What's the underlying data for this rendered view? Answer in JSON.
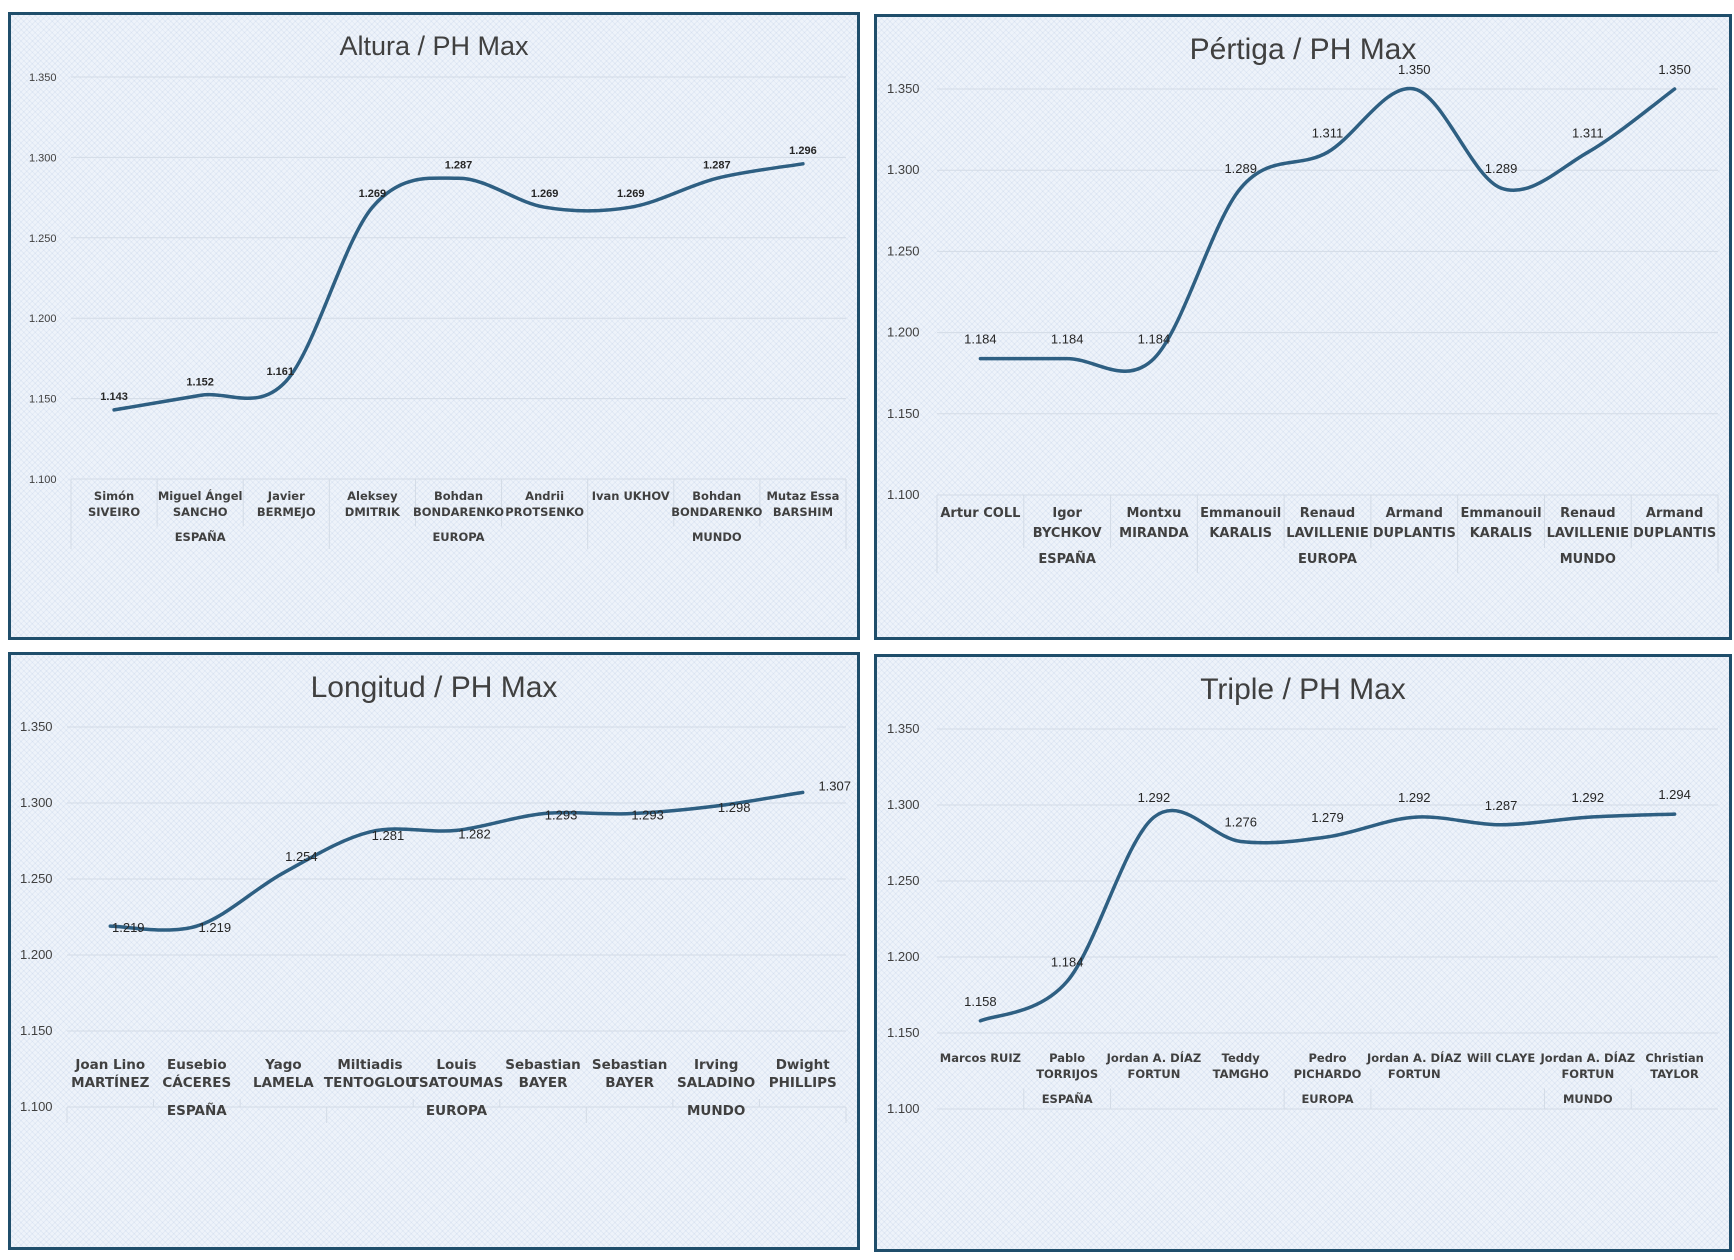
{
  "chart_data": [
    {
      "type": "line",
      "title": "Altura / PH Max",
      "ylim": [
        1.1,
        1.35
      ],
      "yticks": [
        "1.100",
        "1.150",
        "1.200",
        "1.250",
        "1.300",
        "1.350"
      ],
      "categories": [
        [
          "Simón",
          "SIVEIRO"
        ],
        [
          "Miguel Ángel",
          "SANCHO"
        ],
        [
          "Javier",
          "BERMEJO"
        ],
        [
          "Aleksey",
          "DMITRIK"
        ],
        [
          "Bohdan",
          "BONDARENKO"
        ],
        [
          "Andrii",
          "PROTSENKO"
        ],
        [
          "Ivan UKHOV"
        ],
        [
          "Bohdan",
          "BONDARENKO"
        ],
        [
          "Mutaz Essa",
          "BARSHIM"
        ]
      ],
      "groups": [
        "ESPAÑA",
        "EUROPA",
        "MUNDO"
      ],
      "values": [
        1.143,
        1.152,
        1.161,
        1.269,
        1.287,
        1.269,
        1.269,
        1.287,
        1.296
      ],
      "labels": [
        "1.143",
        "1.152",
        "1.161",
        "1.269",
        "1.287",
        "1.269",
        "1.269",
        "1.287",
        "1.296"
      ]
    },
    {
      "type": "line",
      "title": "Pértiga / PH Max",
      "ylim": [
        1.1,
        1.35
      ],
      "yticks": [
        "1.100",
        "1.150",
        "1.200",
        "1.250",
        "1.300",
        "1.350"
      ],
      "categories": [
        [
          "Artur COLL"
        ],
        [
          "Igor",
          "BYCHKOV"
        ],
        [
          "Montxu",
          "MIRANDA"
        ],
        [
          "Emmanouil",
          "KARALIS"
        ],
        [
          "Renaud",
          "LAVILLENIE"
        ],
        [
          "Armand",
          "DUPLANTIS"
        ],
        [
          "Emmanouil",
          "KARALIS"
        ],
        [
          "Renaud",
          "LAVILLENIE"
        ],
        [
          "Armand",
          "DUPLANTIS"
        ]
      ],
      "groups": [
        "ESPAÑA",
        "EUROPA",
        "MUNDO"
      ],
      "values": [
        1.184,
        1.184,
        1.184,
        1.289,
        1.311,
        1.35,
        1.289,
        1.311,
        1.35
      ],
      "labels": [
        "1.184",
        "1.184",
        "1.184",
        "1.289",
        "1.311",
        "1.350",
        "1.289",
        "1.311",
        "1.350"
      ]
    },
    {
      "type": "line",
      "title": "Longitud / PH Max",
      "ylim": [
        1.1,
        1.35
      ],
      "yticks": [
        "1.100",
        "1.150",
        "1.200",
        "1.250",
        "1.300",
        "1.350"
      ],
      "categories": [
        [
          "Joan Lino",
          "MARTÍNEZ"
        ],
        [
          "Eusebio",
          "CÁCERES"
        ],
        [
          "Yago",
          "LAMELA"
        ],
        [
          "Miltiadis",
          "TENTOGLOU"
        ],
        [
          "Louis",
          "TSATOUMAS"
        ],
        [
          "Sebastian",
          "BAYER"
        ],
        [
          "Sebastian",
          "BAYER"
        ],
        [
          "Irving",
          "SALADINO"
        ],
        [
          "Dwight",
          "PHILLIPS"
        ]
      ],
      "groups": [
        "ESPAÑA",
        "EUROPA",
        "MUNDO"
      ],
      "values": [
        1.219,
        1.219,
        1.254,
        1.281,
        1.282,
        1.293,
        1.293,
        1.298,
        1.307
      ],
      "labels": [
        "1.219",
        "1.219",
        "1.254",
        "1.281",
        "1.282",
        "1.293",
        "1.293",
        "1.298",
        "1.307"
      ]
    },
    {
      "type": "line",
      "title": "Triple / PH Max",
      "ylim": [
        1.1,
        1.35
      ],
      "yticks": [
        "1.100",
        "1.150",
        "1.200",
        "1.250",
        "1.300",
        "1.350"
      ],
      "categories": [
        [
          "Marcos RUIZ"
        ],
        [
          "Pablo",
          "TORRIJOS"
        ],
        [
          "Jordan A. DÍAZ",
          "FORTUN"
        ],
        [
          "Teddy",
          "TAMGHO"
        ],
        [
          "Pedro",
          "PICHARDO"
        ],
        [
          "Jordan A. DÍAZ",
          "FORTUN"
        ],
        [
          "Will CLAYE"
        ],
        [
          "Jordan A. DÍAZ",
          "FORTUN"
        ],
        [
          "Christian",
          "TAYLOR"
        ]
      ],
      "groups": [
        "ESPAÑA",
        "EUROPA",
        "MUNDO"
      ],
      "values": [
        1.158,
        1.184,
        1.292,
        1.276,
        1.279,
        1.292,
        1.287,
        1.292,
        1.294
      ],
      "labels": [
        "1.158",
        "1.184",
        "1.292",
        "1.276",
        "1.279",
        "1.292",
        "1.287",
        "1.292",
        "1.294"
      ]
    }
  ],
  "colors": {
    "line": "#2e5f82",
    "grid": "#d3dbe6",
    "frame": "#1f4e6b"
  }
}
